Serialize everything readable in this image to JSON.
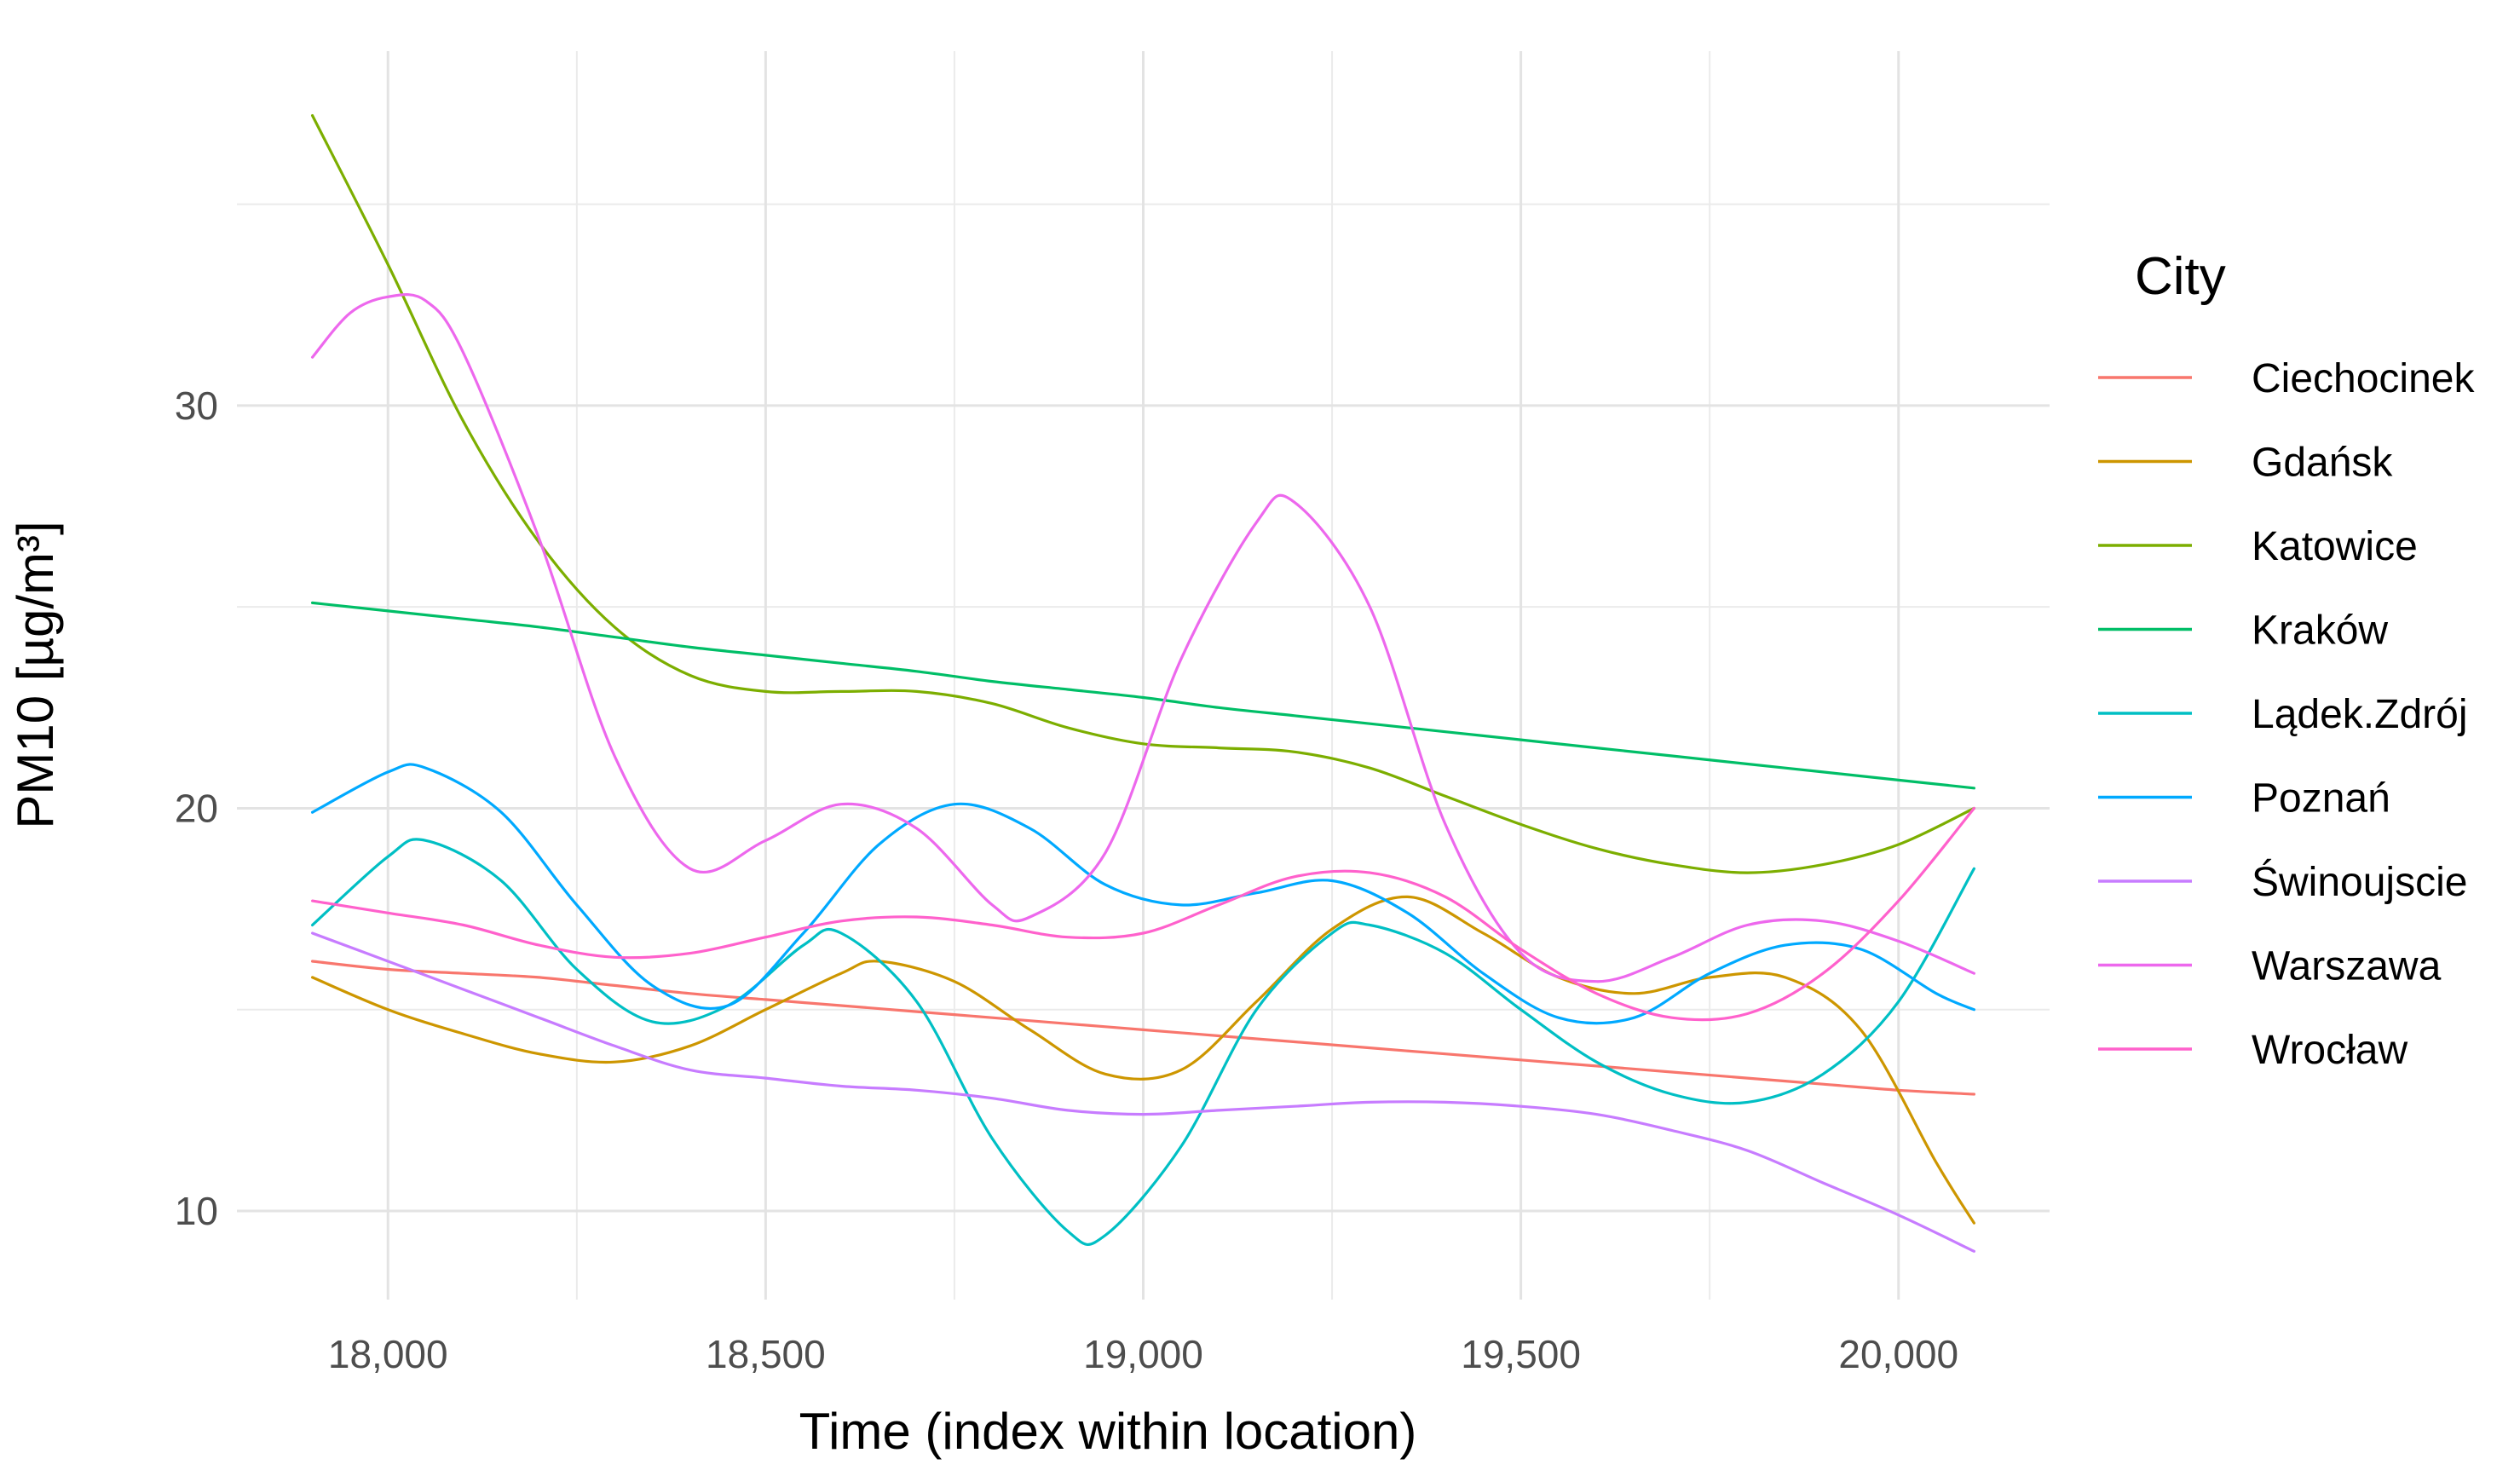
{
  "chart_data": {
    "type": "line",
    "xlabel": "Time (index within location)",
    "ylabel": "PM10 [µg/m³]",
    "xlim": [
      17800,
      20200
    ],
    "ylim": [
      7.8,
      38.8
    ],
    "x_ticks": [
      18000,
      18500,
      19000,
      19500,
      20000
    ],
    "x_tick_labels": [
      "18,000",
      "18,500",
      "19,000",
      "19,500",
      "20,000"
    ],
    "y_ticks": [
      10,
      20,
      30
    ],
    "y_tick_labels": [
      "10",
      "20",
      "30"
    ],
    "grid": true,
    "legend_title": "City",
    "legend_position": "right",
    "series": [
      {
        "name": "Ciechocinek",
        "color": "#F8766D",
        "x": [
          17900,
          18000,
          18100,
          18200,
          18300,
          18400,
          18500,
          18600,
          18700,
          18800,
          18900,
          19000,
          19100,
          19200,
          19300,
          19400,
          19500,
          19600,
          19700,
          19800,
          19900,
          20000,
          20100
        ],
        "y": [
          16.2,
          16.0,
          15.9,
          15.8,
          15.6,
          15.4,
          15.25,
          15.1,
          14.95,
          14.8,
          14.65,
          14.5,
          14.35,
          14.2,
          14.05,
          13.9,
          13.75,
          13.6,
          13.45,
          13.3,
          13.15,
          13.0,
          12.9
        ]
      },
      {
        "name": "Gdańsk",
        "color": "#CD9600",
        "x": [
          17900,
          18000,
          18100,
          18200,
          18300,
          18400,
          18500,
          18600,
          18650,
          18750,
          18850,
          18950,
          19050,
          19150,
          19250,
          19350,
          19450,
          19550,
          19650,
          19750,
          19850,
          19950,
          20050,
          20100
        ],
        "y": [
          15.8,
          15.0,
          14.4,
          13.9,
          13.7,
          14.1,
          15.0,
          15.9,
          16.2,
          15.7,
          14.5,
          13.4,
          13.5,
          15.2,
          17.0,
          17.8,
          16.9,
          15.8,
          15.4,
          15.8,
          15.8,
          14.5,
          11.2,
          9.7
        ]
      },
      {
        "name": "Katowice",
        "color": "#7CAE00",
        "x": [
          17900,
          18000,
          18100,
          18200,
          18300,
          18400,
          18500,
          18600,
          18700,
          18800,
          18900,
          19000,
          19100,
          19200,
          19300,
          19400,
          19500,
          19600,
          19700,
          19800,
          19900,
          20000,
          20100
        ],
        "y": [
          37.2,
          33.5,
          29.6,
          26.6,
          24.5,
          23.3,
          22.9,
          22.9,
          22.9,
          22.6,
          22.0,
          21.6,
          21.5,
          21.4,
          21.0,
          20.3,
          19.6,
          19.0,
          18.6,
          18.4,
          18.6,
          19.1,
          20.0
        ]
      },
      {
        "name": "Kraków",
        "color": "#00BE67",
        "x": [
          17900,
          18000,
          18100,
          18200,
          18300,
          18400,
          18500,
          18600,
          18700,
          18800,
          18900,
          19000,
          19100,
          19200,
          19300,
          19400,
          19500,
          19600,
          19700,
          19800,
          19900,
          20000,
          20100
        ],
        "y": [
          25.1,
          24.9,
          24.7,
          24.5,
          24.25,
          24.0,
          23.8,
          23.6,
          23.4,
          23.15,
          22.95,
          22.75,
          22.5,
          22.3,
          22.1,
          21.9,
          21.7,
          21.5,
          21.3,
          21.1,
          20.9,
          20.7,
          20.5
        ]
      },
      {
        "name": "Lądek.Zdrój",
        "color": "#00BFC4",
        "x": [
          17900,
          18000,
          18050,
          18150,
          18250,
          18350,
          18450,
          18550,
          18600,
          18700,
          18800,
          18900,
          18950,
          19050,
          19150,
          19250,
          19300,
          19400,
          19500,
          19600,
          19700,
          19800,
          19900,
          20000,
          20100
        ],
        "y": [
          17.1,
          18.8,
          19.2,
          18.2,
          16.0,
          14.7,
          15.1,
          16.6,
          16.9,
          15.2,
          11.8,
          9.5,
          9.4,
          11.6,
          15.0,
          16.9,
          17.1,
          16.4,
          15.0,
          13.7,
          12.9,
          12.7,
          13.4,
          15.2,
          18.5
        ]
      },
      {
        "name": "Poznań",
        "color": "#00A9FF",
        "x": [
          17900,
          18000,
          18050,
          18150,
          18250,
          18350,
          18450,
          18550,
          18650,
          18750,
          18850,
          18950,
          19050,
          19150,
          19250,
          19350,
          19450,
          19550,
          19650,
          19750,
          19850,
          19950,
          20050,
          20100
        ],
        "y": [
          19.9,
          20.9,
          21.0,
          19.9,
          17.6,
          15.6,
          15.1,
          16.9,
          19.1,
          20.1,
          19.5,
          18.1,
          17.6,
          17.9,
          18.2,
          17.4,
          15.9,
          14.8,
          14.8,
          15.9,
          16.6,
          16.5,
          15.4,
          15.0
        ]
      },
      {
        "name": "Świnoujscie",
        "color": "#C77CFF",
        "x": [
          17900,
          18000,
          18100,
          18200,
          18300,
          18400,
          18500,
          18600,
          18700,
          18800,
          18900,
          19000,
          19100,
          19200,
          19300,
          19400,
          19500,
          19600,
          19700,
          19800,
          19900,
          20000,
          20100
        ],
        "y": [
          16.9,
          16.2,
          15.5,
          14.8,
          14.1,
          13.5,
          13.3,
          13.1,
          13.0,
          12.8,
          12.5,
          12.4,
          12.5,
          12.6,
          12.7,
          12.7,
          12.6,
          12.4,
          12.0,
          11.5,
          10.7,
          9.9,
          9.0
        ]
      },
      {
        "name": "Warszawa",
        "color": "#ED68ED",
        "x": [
          17900,
          17950,
          18000,
          18050,
          18100,
          18200,
          18300,
          18400,
          18500,
          18600,
          18700,
          18800,
          18850,
          18950,
          19050,
          19150,
          19200,
          19300,
          19400,
          19500,
          19600,
          19700,
          19800,
          19900,
          20000,
          20100
        ],
        "y": [
          31.2,
          32.3,
          32.7,
          32.6,
          31.3,
          26.7,
          21.3,
          18.5,
          19.2,
          20.1,
          19.5,
          17.6,
          17.3,
          18.9,
          23.7,
          27.1,
          27.6,
          25.0,
          19.6,
          16.4,
          15.7,
          16.3,
          17.1,
          17.2,
          16.7,
          15.9
        ]
      },
      {
        "name": "Wrocław",
        "color": "#FF61CC",
        "x": [
          17900,
          18000,
          18100,
          18200,
          18300,
          18400,
          18500,
          18600,
          18700,
          18800,
          18900,
          19000,
          19100,
          19200,
          19300,
          19400,
          19500,
          19600,
          19700,
          19800,
          19900,
          20000,
          20100
        ],
        "y": [
          17.7,
          17.4,
          17.1,
          16.6,
          16.3,
          16.4,
          16.8,
          17.2,
          17.3,
          17.1,
          16.8,
          16.9,
          17.6,
          18.3,
          18.4,
          17.8,
          16.5,
          15.4,
          14.8,
          14.9,
          15.9,
          17.7,
          20.0
        ]
      }
    ]
  }
}
